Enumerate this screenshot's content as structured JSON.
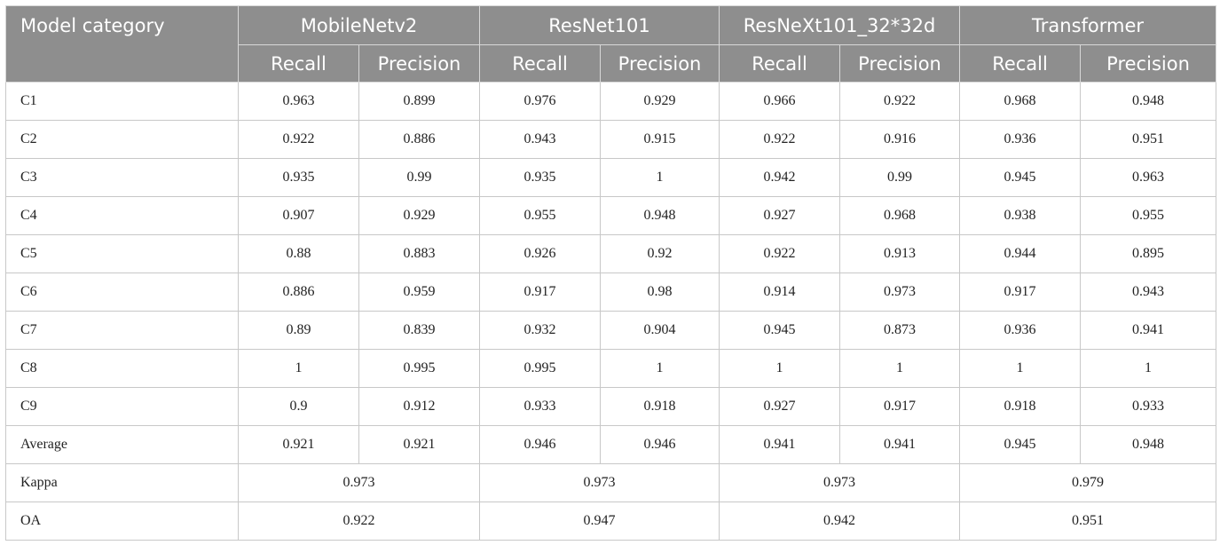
{
  "table": {
    "header": {
      "category_label": "Model category",
      "models": [
        "MobileNetv2",
        "ResNet101",
        "ResNeXt101_32*32d",
        "Transformer"
      ],
      "metrics": [
        "Recall",
        "Precision",
        "Recall",
        "Precision",
        "Recall",
        "Precision",
        "Recall",
        "Precision"
      ]
    },
    "rows": [
      {
        "label": "C1",
        "values": [
          "0.963",
          "0.899",
          "0.976",
          "0.929",
          "0.966",
          "0.922",
          "0.968",
          "0.948"
        ]
      },
      {
        "label": "C2",
        "values": [
          "0.922",
          "0.886",
          "0.943",
          "0.915",
          "0.922",
          "0.916",
          "0.936",
          "0.951"
        ]
      },
      {
        "label": "C3",
        "values": [
          "0.935",
          "0.99",
          "0.935",
          "1",
          "0.942",
          "0.99",
          "0.945",
          "0.963"
        ]
      },
      {
        "label": "C4",
        "values": [
          "0.907",
          "0.929",
          "0.955",
          "0.948",
          "0.927",
          "0.968",
          "0.938",
          "0.955"
        ]
      },
      {
        "label": "C5",
        "values": [
          "0.88",
          "0.883",
          "0.926",
          "0.92",
          "0.922",
          "0.913",
          "0.944",
          "0.895"
        ]
      },
      {
        "label": "C6",
        "values": [
          "0.886",
          "0.959",
          "0.917",
          "0.98",
          "0.914",
          "0.973",
          "0.917",
          "0.943"
        ]
      },
      {
        "label": "C7",
        "values": [
          "0.89",
          "0.839",
          "0.932",
          "0.904",
          "0.945",
          "0.873",
          "0.936",
          "0.941"
        ]
      },
      {
        "label": "C8",
        "values": [
          "1",
          "0.995",
          "0.995",
          "1",
          "1",
          "1",
          "1",
          "1"
        ]
      },
      {
        "label": "C9",
        "values": [
          "0.9",
          "0.912",
          "0.933",
          "0.918",
          "0.927",
          "0.917",
          "0.918",
          "0.933"
        ]
      },
      {
        "label": "Average",
        "values": [
          "0.921",
          "0.921",
          "0.946",
          "0.946",
          "0.941",
          "0.941",
          "0.945",
          "0.948"
        ]
      }
    ],
    "summary": [
      {
        "label": "Kappa",
        "values": [
          "0.973",
          "0.973",
          "0.973",
          "0.979"
        ]
      },
      {
        "label": "OA",
        "values": [
          "0.922",
          "0.947",
          "0.942",
          "0.951"
        ]
      }
    ]
  }
}
